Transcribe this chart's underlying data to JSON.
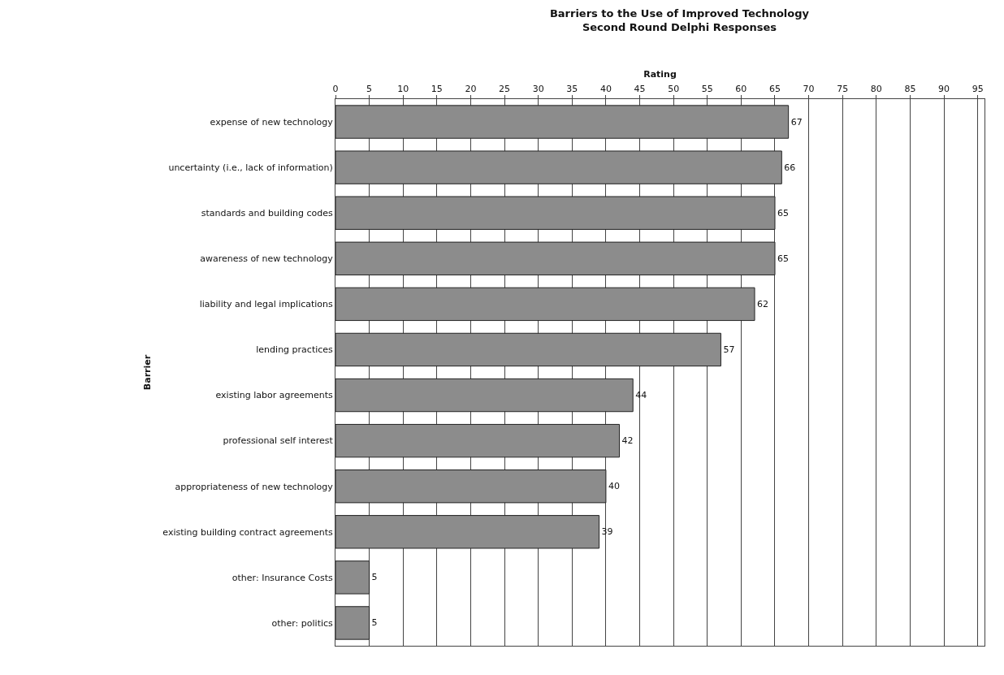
{
  "chart_data": {
    "type": "bar",
    "orientation": "horizontal",
    "title": "Barriers to the Use of Improved Technology",
    "subtitle": "Second Round Delphi Responses",
    "xlabel": "Rating",
    "ylabel": "Barrier",
    "categories": [
      "expense of new technology",
      "uncertainty (i.e., lack of information)",
      "standards and building codes",
      "awareness of new technology",
      "liability and legal implications",
      "lending practices",
      "existing labor agreements",
      "professional self interest",
      "appropriateness of new technology",
      "existing building contract agreements",
      "other: Insurance Costs",
      "other: politics"
    ],
    "values": [
      67,
      66,
      65,
      65,
      62,
      57,
      44,
      42,
      40,
      39,
      5,
      5
    ],
    "color": "#8c8c8c",
    "data_labels": true,
    "grid": "x",
    "legend": false,
    "xlim": [
      0,
      96
    ],
    "xticks": [
      0,
      5,
      10,
      15,
      20,
      25,
      30,
      35,
      40,
      45,
      50,
      55,
      60,
      65,
      70,
      75,
      80,
      85,
      90,
      95
    ]
  }
}
